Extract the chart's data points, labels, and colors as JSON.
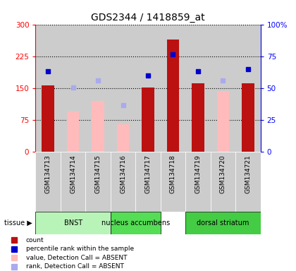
{
  "title": "GDS2344 / 1418859_at",
  "samples": [
    "GSM134713",
    "GSM134714",
    "GSM134715",
    "GSM134716",
    "GSM134717",
    "GSM134718",
    "GSM134719",
    "GSM134720",
    "GSM134721"
  ],
  "count_values": [
    157,
    null,
    null,
    null,
    152,
    265,
    162,
    null,
    162
  ],
  "absent_values": [
    null,
    95,
    120,
    65,
    null,
    null,
    null,
    143,
    null
  ],
  "pct_rank_left": [
    190,
    null,
    null,
    null,
    180,
    230,
    190,
    null,
    195
  ],
  "absent_rank_left": [
    null,
    152,
    168,
    110,
    null,
    null,
    null,
    168,
    null
  ],
  "tissue_groups": [
    {
      "label": "BNST",
      "start": 0,
      "end": 2,
      "color": "#b8f4b8"
    },
    {
      "label": "nucleus accumbens",
      "start": 3,
      "end": 4,
      "color": "#55dd55"
    },
    {
      "label": "dorsal striatum",
      "start": 6,
      "end": 8,
      "color": "#44cc44"
    }
  ],
  "ylim_left": [
    0,
    300
  ],
  "ylim_right": [
    0,
    100
  ],
  "yticks_left": [
    0,
    75,
    150,
    225,
    300
  ],
  "yticks_right": [
    0,
    25,
    50,
    75,
    100
  ],
  "bar_color_present": "#bb1111",
  "bar_color_absent": "#ffbbbb",
  "dot_color_present": "#0000cc",
  "dot_color_absent": "#aaaaee",
  "bg_sample": "#cccccc",
  "bar_width": 0.5,
  "legend_items": [
    {
      "color": "#bb1111",
      "label": "count"
    },
    {
      "color": "#0000cc",
      "label": "percentile rank within the sample"
    },
    {
      "color": "#ffbbbb",
      "label": "value, Detection Call = ABSENT"
    },
    {
      "color": "#aaaaee",
      "label": "rank, Detection Call = ABSENT"
    }
  ]
}
